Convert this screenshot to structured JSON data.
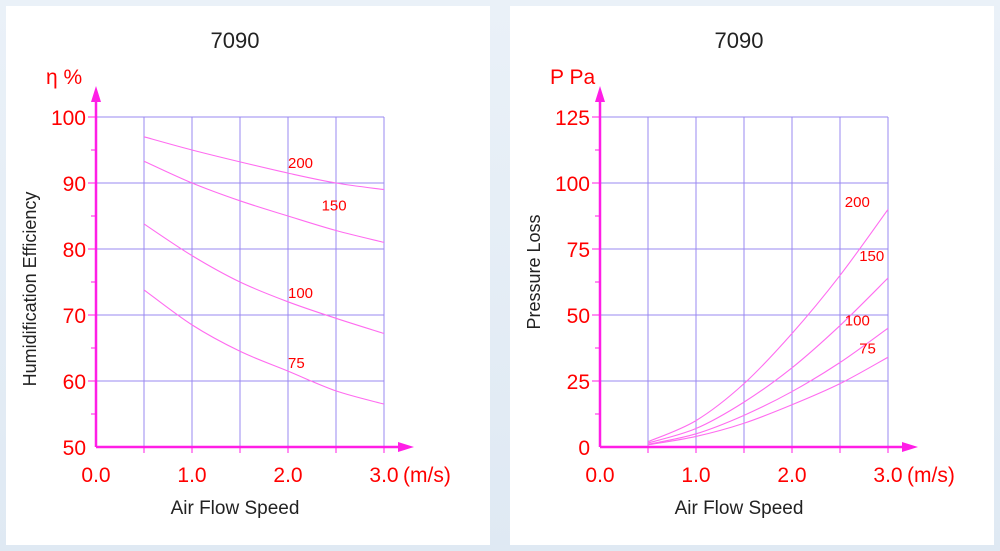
{
  "chart_data": [
    {
      "type": "line",
      "title": "7090",
      "unit_label": "η %",
      "xlabel": "Air  Flow Speed",
      "x_unit": "(m/s)",
      "ylabel": "Humidification Efficiency",
      "xlim": [
        0,
        3
      ],
      "ylim": [
        50,
        100
      ],
      "x_ticks": [
        "0.0",
        "1.0",
        "2.0",
        "3.0"
      ],
      "y_ticks": [
        "50",
        "60",
        "70",
        "80",
        "90",
        "100"
      ],
      "grid": true,
      "series": [
        {
          "name": "200",
          "x": [
            0.5,
            1.0,
            1.5,
            2.0,
            2.5,
            3.0
          ],
          "y": [
            97,
            95,
            93.2,
            91.5,
            90,
            89
          ]
        },
        {
          "name": "150",
          "x": [
            0.5,
            1.0,
            1.5,
            2.0,
            2.5,
            3.0
          ],
          "y": [
            93.3,
            90,
            87.3,
            85,
            82.8,
            81
          ]
        },
        {
          "name": "100",
          "x": [
            0.5,
            1.0,
            1.5,
            2.0,
            2.5,
            3.0
          ],
          "y": [
            83.8,
            79,
            75,
            72,
            69.5,
            67.2
          ]
        },
        {
          "name": "75",
          "x": [
            0.5,
            1.0,
            1.5,
            2.0,
            2.5,
            3.0
          ],
          "y": [
            73.8,
            68.5,
            64.5,
            61.5,
            58.5,
            56.5
          ]
        }
      ]
    },
    {
      "type": "line",
      "title": "7090",
      "unit_label": "P Pa",
      "xlabel": "Air  Flow Speed",
      "x_unit": "(m/s)",
      "ylabel": "Pressure Loss",
      "xlim": [
        0,
        3
      ],
      "ylim": [
        0,
        125
      ],
      "x_ticks": [
        "0.0",
        "1.0",
        "2.0",
        "3.0"
      ],
      "y_ticks": [
        "0",
        "25",
        "50",
        "75",
        "100",
        "125"
      ],
      "grid": true,
      "series": [
        {
          "name": "200",
          "x": [
            0.5,
            1.0,
            1.5,
            2.0,
            2.5,
            3.0
          ],
          "y": [
            2,
            10,
            24,
            43,
            65,
            90
          ]
        },
        {
          "name": "150",
          "x": [
            0.5,
            1.0,
            1.5,
            2.0,
            2.5,
            3.0
          ],
          "y": [
            1.5,
            7,
            17,
            30,
            46,
            64
          ]
        },
        {
          "name": "100",
          "x": [
            0.5,
            1.0,
            1.5,
            2.0,
            2.5,
            3.0
          ],
          "y": [
            1,
            5,
            12,
            21,
            32,
            45
          ]
        },
        {
          "name": "75",
          "x": [
            0.5,
            1.0,
            1.5,
            2.0,
            2.5,
            3.0
          ],
          "y": [
            0.8,
            4,
            9,
            16,
            24,
            34
          ]
        }
      ]
    }
  ],
  "colors": {
    "axis": "#ff1ee6",
    "grid": "#9a88f0",
    "curve": "#ff6cf0",
    "text_accent": "#ff0000"
  }
}
